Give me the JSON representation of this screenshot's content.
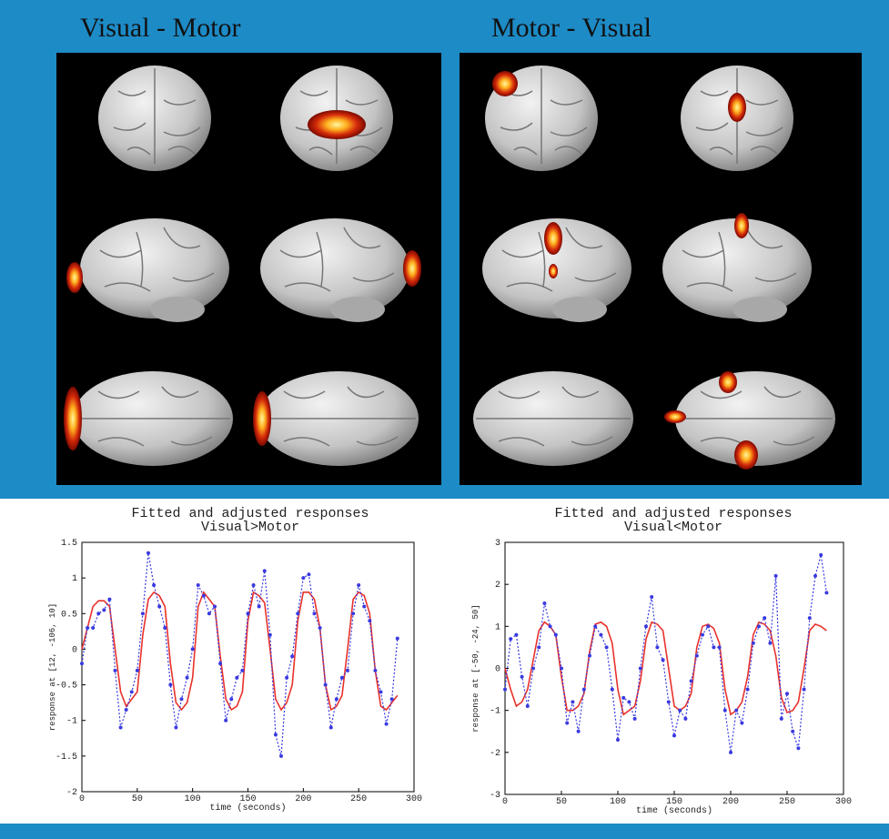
{
  "slide": {
    "panels": [
      {
        "title": "Visual - Motor"
      },
      {
        "title": "Motor - Visual"
      }
    ]
  },
  "chart_data": [
    {
      "type": "line",
      "title": "Fitted and adjusted responses",
      "subtitle": "Visual>Motor",
      "x_label": "time (seconds)",
      "y_label": "response at [12, -106, 10]",
      "xlim": [
        0,
        300
      ],
      "xticks": [
        0,
        50,
        100,
        150,
        200,
        250,
        300
      ],
      "ylim": [
        -2,
        1.5
      ],
      "yticks": [
        -2,
        -1.5,
        -1,
        -0.5,
        0,
        0.5,
        1,
        1.5
      ],
      "x": [
        0,
        5,
        10,
        15,
        20,
        25,
        30,
        35,
        40,
        45,
        50,
        55,
        60,
        65,
        70,
        75,
        80,
        85,
        90,
        95,
        100,
        105,
        110,
        115,
        120,
        125,
        130,
        135,
        140,
        145,
        150,
        155,
        160,
        165,
        170,
        175,
        180,
        185,
        190,
        195,
        200,
        205,
        210,
        215,
        220,
        225,
        230,
        235,
        240,
        245,
        250,
        255,
        260,
        265,
        270,
        275,
        280,
        285
      ],
      "series": [
        {
          "color": "#e8322c",
          "linestyle": "solid",
          "markers": false,
          "values": [
            0.0,
            0.3,
            0.6,
            0.68,
            0.68,
            0.6,
            0.0,
            -0.6,
            -0.8,
            -0.7,
            -0.6,
            0.2,
            0.7,
            0.8,
            0.75,
            0.6,
            -0.2,
            -0.75,
            -0.85,
            -0.75,
            -0.4,
            0.6,
            0.8,
            0.7,
            0.6,
            -0.1,
            -0.7,
            -0.85,
            -0.8,
            -0.6,
            0.4,
            0.8,
            0.75,
            0.65,
            0.0,
            -0.7,
            -0.85,
            -0.75,
            -0.5,
            0.4,
            0.8,
            0.8,
            0.7,
            0.3,
            -0.5,
            -0.85,
            -0.8,
            -0.65,
            0.0,
            0.7,
            0.8,
            0.75,
            0.5,
            -0.3,
            -0.8,
            -0.85,
            -0.75,
            -0.65
          ]
        },
        {
          "color": "#3a3ae0",
          "linestyle": "dotted",
          "markers": true,
          "values": [
            -0.2,
            0.3,
            0.3,
            0.5,
            0.55,
            0.7,
            -0.3,
            -1.1,
            -0.85,
            -0.6,
            -0.3,
            0.5,
            1.35,
            0.9,
            0.6,
            0.3,
            -0.5,
            -1.1,
            -0.7,
            -0.4,
            0.0,
            0.9,
            0.75,
            0.5,
            0.6,
            -0.2,
            -1.0,
            -0.7,
            -0.4,
            -0.3,
            0.5,
            0.9,
            0.6,
            1.1,
            0.2,
            -1.2,
            -1.5,
            -0.4,
            -0.1,
            0.5,
            1.0,
            1.05,
            0.5,
            0.3,
            -0.5,
            -1.1,
            -0.7,
            -0.4,
            -0.3,
            0.5,
            0.9,
            0.6,
            0.4,
            -0.3,
            -0.6,
            -1.05,
            -0.7,
            0.15
          ]
        }
      ]
    },
    {
      "type": "line",
      "title": "Fitted and adjusted responses",
      "subtitle": "Visual<Motor",
      "x_label": "time (seconds)",
      "y_label": "response at [-50, -24, 50]",
      "xlim": [
        0,
        300
      ],
      "xticks": [
        0,
        50,
        100,
        150,
        200,
        250,
        300
      ],
      "ylim": [
        -3,
        3
      ],
      "yticks": [
        -3,
        -2,
        -1,
        0,
        1,
        2,
        3
      ],
      "x": [
        0,
        5,
        10,
        15,
        20,
        25,
        30,
        35,
        40,
        45,
        50,
        55,
        60,
        65,
        70,
        75,
        80,
        85,
        90,
        95,
        100,
        105,
        110,
        115,
        120,
        125,
        130,
        135,
        140,
        145,
        150,
        155,
        160,
        165,
        170,
        175,
        180,
        185,
        190,
        195,
        200,
        205,
        210,
        215,
        220,
        225,
        230,
        235,
        240,
        245,
        250,
        255,
        260,
        265,
        270,
        275,
        280,
        285
      ],
      "series": [
        {
          "color": "#e8322c",
          "linestyle": "solid",
          "markers": false,
          "values": [
            0.0,
            -0.5,
            -0.9,
            -0.8,
            -0.5,
            0.2,
            0.9,
            1.1,
            1.0,
            0.8,
            -0.2,
            -1.0,
            -1.0,
            -0.9,
            -0.6,
            0.4,
            1.05,
            1.1,
            1.0,
            0.6,
            -0.5,
            -1.1,
            -1.0,
            -0.9,
            -0.3,
            0.7,
            1.1,
            1.05,
            0.9,
            0.0,
            -0.9,
            -1.0,
            -0.9,
            -0.6,
            0.5,
            1.0,
            1.05,
            0.95,
            0.6,
            -0.5,
            -1.1,
            -1.0,
            -0.8,
            -0.2,
            0.8,
            1.1,
            1.05,
            0.9,
            0.3,
            -0.7,
            -1.05,
            -1.0,
            -0.8,
            0.0,
            0.9,
            1.05,
            1.0,
            0.9
          ]
        },
        {
          "color": "#3a3ae0",
          "linestyle": "dotted",
          "markers": true,
          "values": [
            -0.5,
            0.7,
            0.8,
            -0.2,
            -0.9,
            0.0,
            0.5,
            1.55,
            1.0,
            0.8,
            0.0,
            -1.3,
            -0.8,
            -1.5,
            -0.5,
            0.3,
            1.0,
            0.8,
            0.5,
            -0.5,
            -1.7,
            -0.7,
            -0.8,
            -1.2,
            0.0,
            1.0,
            1.7,
            0.5,
            0.2,
            -0.8,
            -1.6,
            -1.0,
            -1.2,
            -0.3,
            0.3,
            0.8,
            1.0,
            0.5,
            0.5,
            -1.0,
            -2.0,
            -1.0,
            -1.3,
            -0.5,
            0.6,
            1.0,
            1.2,
            0.6,
            2.2,
            -1.2,
            -0.6,
            -1.5,
            -1.9,
            -0.5,
            1.2,
            2.2,
            2.7,
            1.8
          ]
        }
      ]
    }
  ]
}
